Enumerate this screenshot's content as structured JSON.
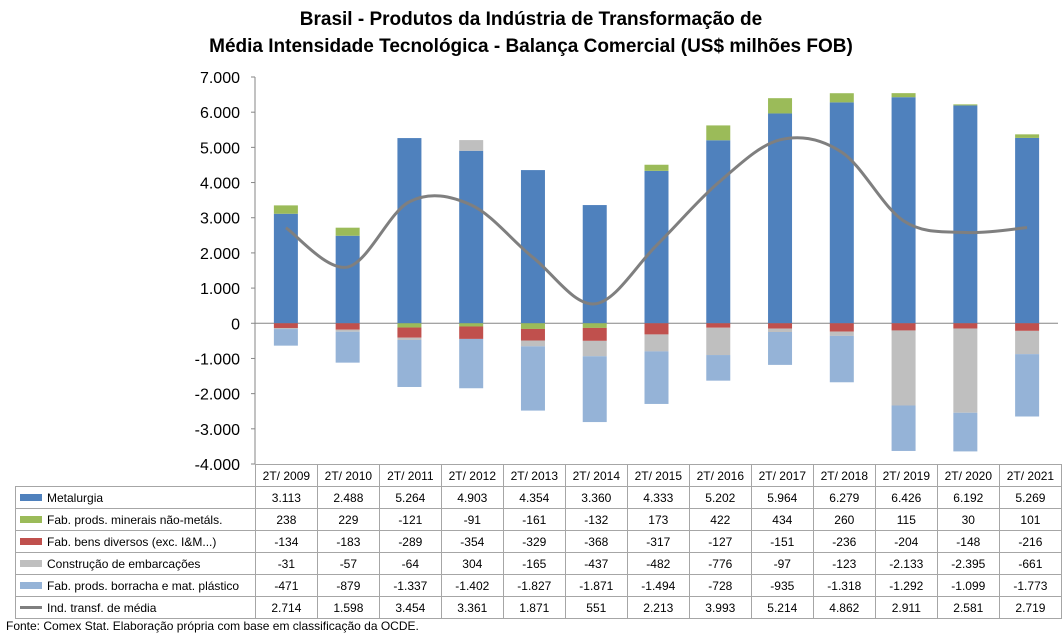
{
  "title_line1": "Brasil - Produtos da Indústria de Transformação de",
  "title_line2": "Média Intensidade Tecnológica - Balança Comercial (US$ milhões FOB)",
  "source": "Fonte:  Comex Stat. Elaboração própria com base em classificação da OCDE.",
  "chart_data": {
    "type": "bar",
    "stacked": true,
    "ylim": [
      -4000,
      7000
    ],
    "y_ticks": [
      "7.000",
      "6.000",
      "5.000",
      "4.000",
      "3.000",
      "2.000",
      "1.000",
      "0",
      "-1.000",
      "-2.000",
      "-3.000",
      "-4.000"
    ],
    "y_tick_values": [
      7000,
      6000,
      5000,
      4000,
      3000,
      2000,
      1000,
      0,
      -1000,
      -2000,
      -3000,
      -4000
    ],
    "categories": [
      "2T/ 2009",
      "2T/ 2010",
      "2T/ 2011",
      "2T/ 2012",
      "2T/ 2013",
      "2T/ 2014",
      "2T/ 2015",
      "2T/ 2016",
      "2T/ 2017",
      "2T/ 2018",
      "2T/ 2019",
      "2T/ 2020",
      "2T/ 2021"
    ],
    "series": [
      {
        "name": "Metalurgia",
        "type": "bar",
        "color": "#4f81bd",
        "values": [
          3113,
          2488,
          5264,
          4903,
          4354,
          3360,
          4333,
          5202,
          5964,
          6279,
          6426,
          6192,
          5269
        ],
        "labels": [
          "3.113",
          "2.488",
          "5.264",
          "4.903",
          "4.354",
          "3.360",
          "4.333",
          "5.202",
          "5.964",
          "6.279",
          "6.426",
          "6.192",
          "5.269"
        ]
      },
      {
        "name": "Fab. prods. minerais não-metáls.",
        "type": "bar",
        "color": "#9bbb59",
        "values": [
          238,
          229,
          -121,
          -91,
          -161,
          -132,
          173,
          422,
          434,
          260,
          115,
          30,
          101
        ],
        "labels": [
          "238",
          "229",
          "-121",
          "-91",
          "-161",
          "-132",
          "173",
          "422",
          "434",
          "260",
          "115",
          "30",
          "101"
        ]
      },
      {
        "name": "Fab. bens diversos (exc. I&M...)",
        "type": "bar",
        "color": "#c0504d",
        "values": [
          -134,
          -183,
          -289,
          -354,
          -329,
          -368,
          -317,
          -127,
          -151,
          -236,
          -204,
          -148,
          -216
        ],
        "labels": [
          "-134",
          "-183",
          "-289",
          "-354",
          "-329",
          "-368",
          "-317",
          "-127",
          "-151",
          "-236",
          "-204",
          "-148",
          "-216"
        ]
      },
      {
        "name": "Construção de embarcações",
        "type": "bar",
        "color": "#bfbfbf",
        "values": [
          -31,
          -57,
          -64,
          304,
          -165,
          -437,
          -482,
          -776,
          -97,
          -123,
          -2133,
          -2395,
          -661
        ],
        "labels": [
          "-31",
          "-57",
          "-64",
          "304",
          "-165",
          "-437",
          "-482",
          "-776",
          "-97",
          "-123",
          "-2.133",
          "-2.395",
          "-661"
        ]
      },
      {
        "name": "Fab. prods. borracha e mat. plástico",
        "type": "bar",
        "color": "#95b3d7",
        "values": [
          -471,
          -879,
          -1337,
          -1402,
          -1827,
          -1871,
          -1494,
          -728,
          -935,
          -1318,
          -1292,
          -1099,
          -1773
        ],
        "labels": [
          "-471",
          "-879",
          "-1.337",
          "-1.402",
          "-1.827",
          "-1.871",
          "-1.494",
          "-728",
          "-935",
          "-1.318",
          "-1.292",
          "-1.099",
          "-1.773"
        ]
      },
      {
        "name": "Ind. transf. de média",
        "type": "line",
        "color": "#7f7f7f",
        "values": [
          2714,
          1598,
          3454,
          3361,
          1871,
          551,
          2213,
          3993,
          5214,
          4862,
          2911,
          2581,
          2719
        ],
        "labels": [
          "2.714",
          "1.598",
          "3.454",
          "3.361",
          "1.871",
          "551",
          "2.213",
          "3.993",
          "5.214",
          "4.862",
          "2.911",
          "2.581",
          "2.719"
        ]
      }
    ]
  }
}
